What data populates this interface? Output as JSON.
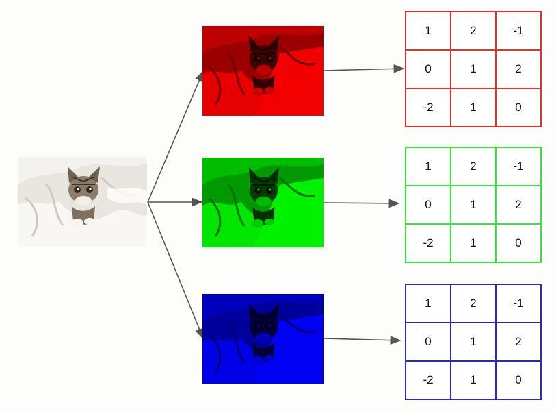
{
  "source": {
    "icon": "cat-photo"
  },
  "channels": [
    {
      "name": "red",
      "color": "#ff0000",
      "border": "#e03030",
      "matrix": [
        [
          "1",
          "2",
          "-1"
        ],
        [
          "0",
          "1",
          "2"
        ],
        [
          "-2",
          "1",
          "0"
        ]
      ]
    },
    {
      "name": "green",
      "color": "#00ff00",
      "border": "#33e633",
      "matrix": [
        [
          "1",
          "2",
          "-1"
        ],
        [
          "0",
          "1",
          "2"
        ],
        [
          "-2",
          "1",
          "0"
        ]
      ]
    },
    {
      "name": "blue",
      "color": "#0000ff",
      "border": "#2a2ab8",
      "matrix": [
        [
          "1",
          "2",
          "-1"
        ],
        [
          "0",
          "1",
          "2"
        ],
        [
          "-2",
          "1",
          "0"
        ]
      ]
    }
  ],
  "colors": {
    "arrow": "#555555",
    "background": "#fdfdfb"
  }
}
